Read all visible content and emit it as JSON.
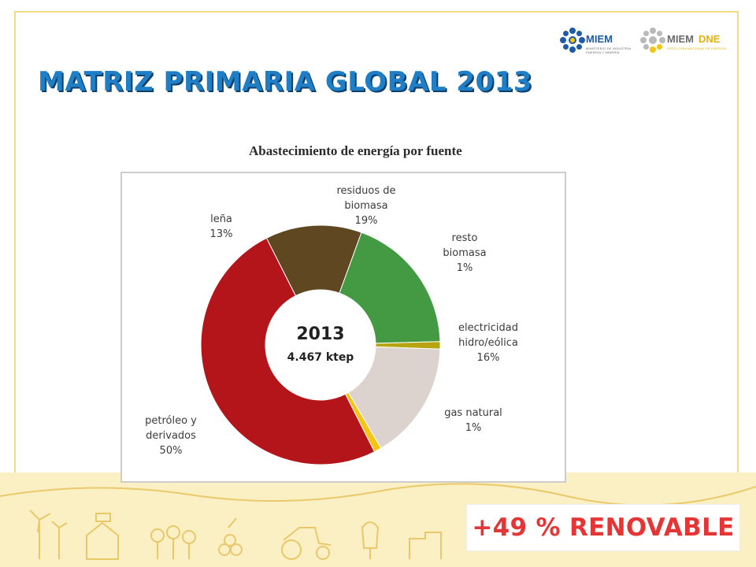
{
  "slide": {
    "title": "MATRIZ PRIMARIA GLOBAL 2013",
    "badge": "+49 % RENOVABLE"
  },
  "logos": {
    "miem": "MIEM",
    "miem_sub_1": "MINISTERIO DE INDUSTRIA",
    "miem_sub_2": "ENERGÍA Y MINERÍA",
    "dne_a": "MIEM",
    "dne_b": "DNE",
    "dne_sub": "DIRECCIÓN NACIONAL DE ENERGÍA"
  },
  "colors": {
    "title": "#1f7fc6",
    "badge_text": "#e53535",
    "frame": "#f1dc86",
    "band": "#fbf0c3"
  },
  "chart_data": {
    "type": "pie",
    "title": "Abastecimiento de energía por fuente",
    "center_label": "2013",
    "center_sublabel": "4.467 ktep",
    "slices": [
      {
        "label_lines": [
          "residuos de",
          "biomasa"
        ],
        "value": 19,
        "value_text": "19%",
        "color": "#449a43"
      },
      {
        "label_lines": [
          "resto",
          "biomasa"
        ],
        "value": 1,
        "value_text": "1%",
        "color": "#b7a410"
      },
      {
        "label_lines": [
          "electricidad",
          "hidro/eólica"
        ],
        "value": 16,
        "value_text": "16%",
        "color": "#dcd3cf"
      },
      {
        "label_lines": [
          "gas natural"
        ],
        "value": 1,
        "value_text": "1%",
        "color": "#f3c614"
      },
      {
        "label_lines": [
          "petróleo y",
          "derivados"
        ],
        "value": 50,
        "value_text": "50%",
        "color": "#b4151b"
      },
      {
        "label_lines": [
          "leña"
        ],
        "value": 13,
        "value_text": "13%",
        "color": "#5f4721"
      }
    ]
  }
}
